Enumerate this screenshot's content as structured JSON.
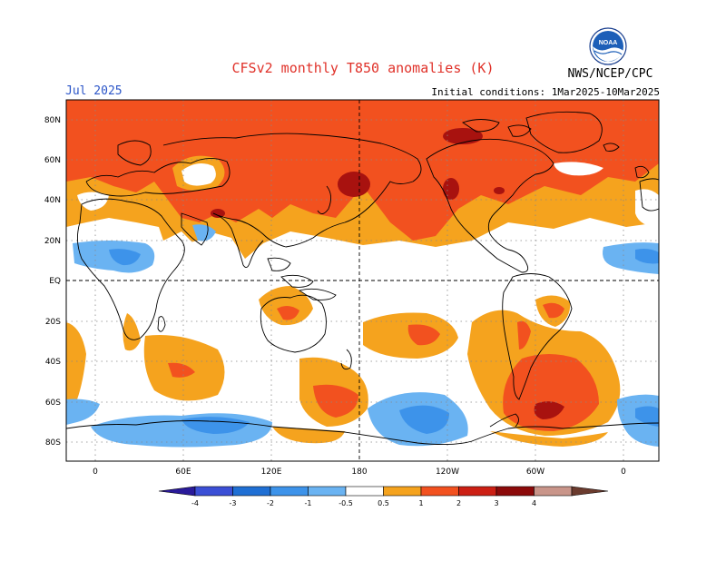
{
  "header": {
    "title": "CFSv2 monthly T850 anomalies (K)",
    "month": "Jul 2025",
    "initial_conditions": "Initial conditions: 1Mar2025-10Mar2025",
    "agency": "NWS/NCEP/CPC",
    "logo_text": "NOAA"
  },
  "axes": {
    "lat_labels": [
      "80N",
      "60N",
      "40N",
      "20N",
      "EQ",
      "20S",
      "40S",
      "60S",
      "80S"
    ],
    "lon_labels": [
      "0",
      "60E",
      "120E",
      "180",
      "120W",
      "60W",
      "0"
    ]
  },
  "legend": {
    "ticks": [
      "-4",
      "-3",
      "-2",
      "-1",
      "-0.5",
      "0.5",
      "1",
      "2",
      "3",
      "4"
    ],
    "colors": [
      "#2a1a9a",
      "#3b4fd6",
      "#1f6fd4",
      "#3d93ea",
      "#6ab3f2",
      "#ffffff",
      "#f5a31e",
      "#f2511f",
      "#cc1f14",
      "#8c0a0a",
      "#c9958a",
      "#6b3b2e"
    ]
  },
  "colors": {
    "title": "#e0322a",
    "month": "#2b55c8",
    "warm1": "#f5a31e",
    "warm2": "#f2511f",
    "warm3": "#a8120f",
    "cool1": "#6ab3f2",
    "cool2": "#3d93ea"
  }
}
